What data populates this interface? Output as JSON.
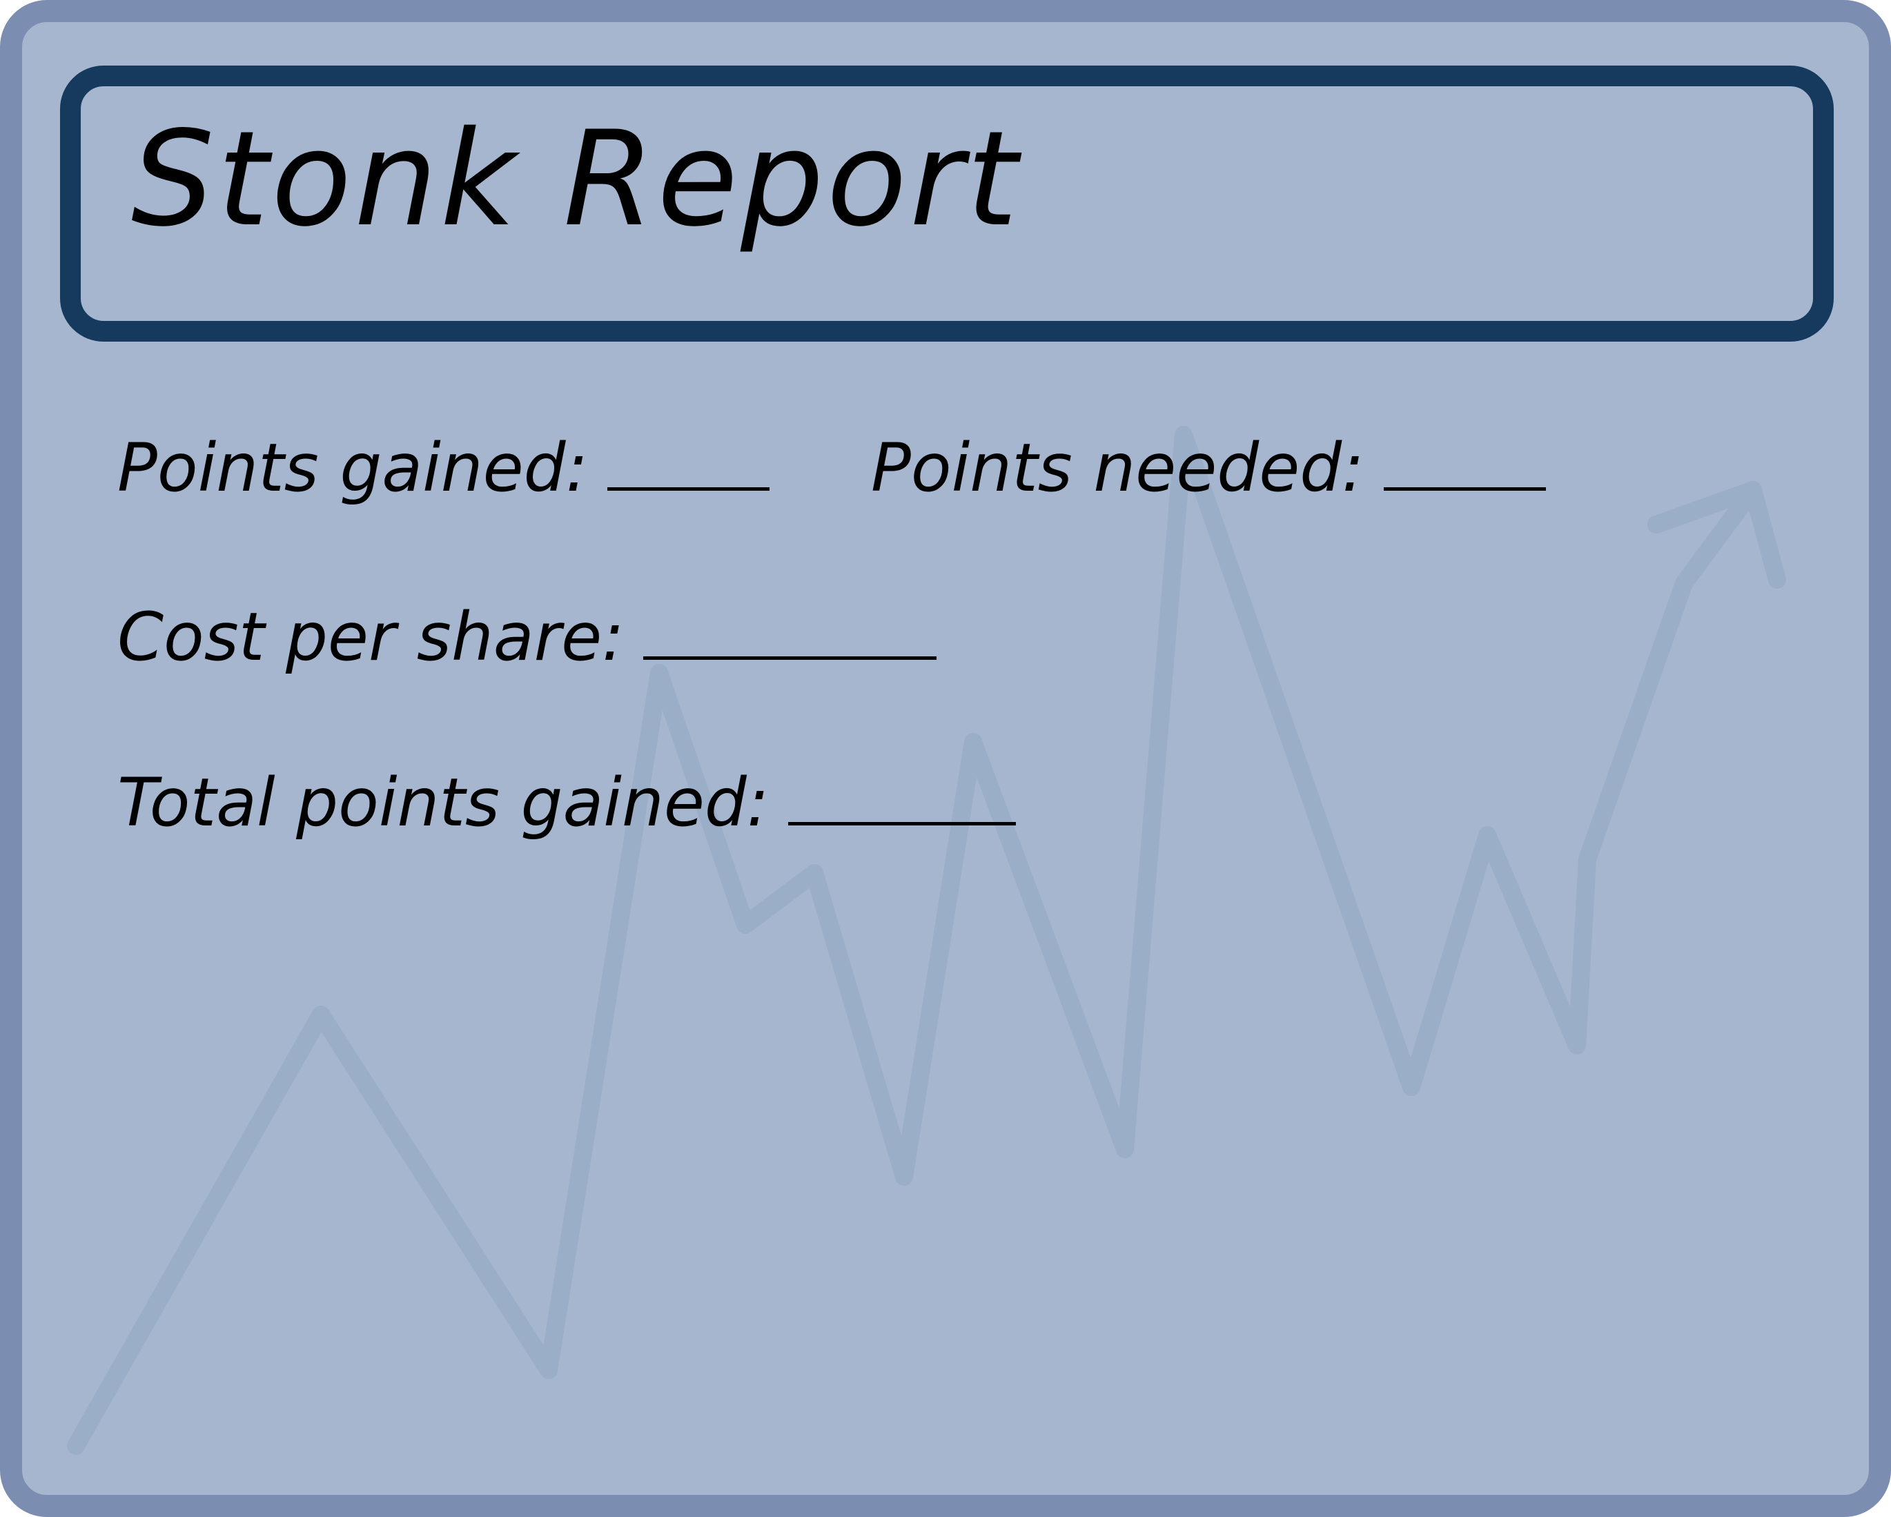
{
  "title": "Stonk Report",
  "fields": {
    "points_gained": {
      "label": "Points gained:"
    },
    "points_needed": {
      "label": "Points needed:"
    },
    "cost_per_share": {
      "label": "Cost per share:"
    },
    "total_points_gained": {
      "label": "Total points gained:"
    }
  },
  "colors": {
    "card_fill": "#a5b6ce",
    "card_border": "#7b8db0",
    "title_border": "#163a5e",
    "trend_line": "#9aaec8",
    "text": "#000000"
  },
  "icons": {
    "trend": "rising-zigzag-arrow-icon"
  }
}
